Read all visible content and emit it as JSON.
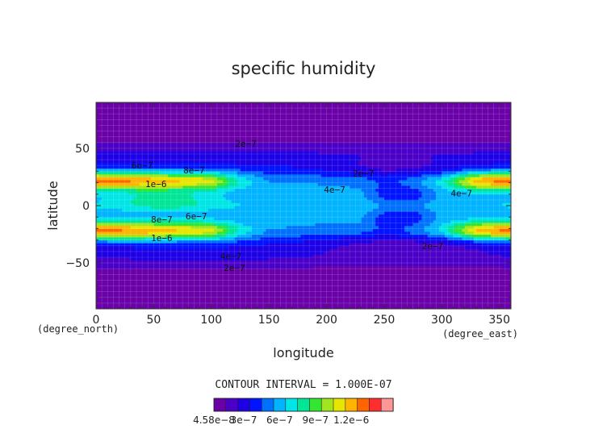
{
  "chart_data": {
    "type": "heatmap",
    "title": "specific humidity",
    "xlabel": "longitude",
    "ylabel": "latitude",
    "x_unit": "(degree_east)",
    "y_unit": "(degree_north)",
    "xlim": [
      0,
      360
    ],
    "ylim": [
      -90,
      90
    ],
    "x_ticks": [
      0,
      50,
      100,
      150,
      200,
      250,
      300,
      350
    ],
    "y_ticks": [
      -50,
      0,
      50
    ],
    "grid": true,
    "contour_interval_text": "CONTOUR INTERVAL = 1.000E-07",
    "colorbar": {
      "colors": [
        "#6a00a8",
        "#4b00c8",
        "#1e00e6",
        "#0014ff",
        "#0070ff",
        "#00b4ff",
        "#00e6e6",
        "#00e696",
        "#32e632",
        "#a0e61e",
        "#e6e600",
        "#ffb400",
        "#ff6400",
        "#ff2d2d",
        "#ff9696"
      ],
      "tick_labels": [
        "4.58e−8",
        "3e−7",
        "6e−7",
        "9e−7",
        "1.2e−6"
      ],
      "tick_positions": [
        0,
        2.5,
        5.5,
        8.5,
        11.5
      ]
    },
    "z_min": 4.58e-08,
    "z_step": 1e-07,
    "z_max": 1.2e-06,
    "contour_labels": [
      {
        "text": "2e−7",
        "lon": 130,
        "lat": 54
      },
      {
        "text": "6e−7",
        "lon": 40,
        "lat": 35
      },
      {
        "text": "8e−7",
        "lon": 85,
        "lat": 31
      },
      {
        "text": "1e−6",
        "lon": 52,
        "lat": 19
      },
      {
        "text": "2e−7",
        "lon": 232,
        "lat": 28
      },
      {
        "text": "4e−7",
        "lon": 207,
        "lat": 14
      },
      {
        "text": "4e−7",
        "lon": 317,
        "lat": 11
      },
      {
        "text": "6e−7",
        "lon": 87,
        "lat": -9
      },
      {
        "text": "8e−7",
        "lon": 57,
        "lat": -12
      },
      {
        "text": "1e−6",
        "lon": 57,
        "lat": -28
      },
      {
        "text": "4e−7",
        "lon": 117,
        "lat": -44
      },
      {
        "text": "2e−7",
        "lon": 120,
        "lat": -54
      },
      {
        "text": "2e−7",
        "lon": 292,
        "lat": -35
      }
    ]
  }
}
